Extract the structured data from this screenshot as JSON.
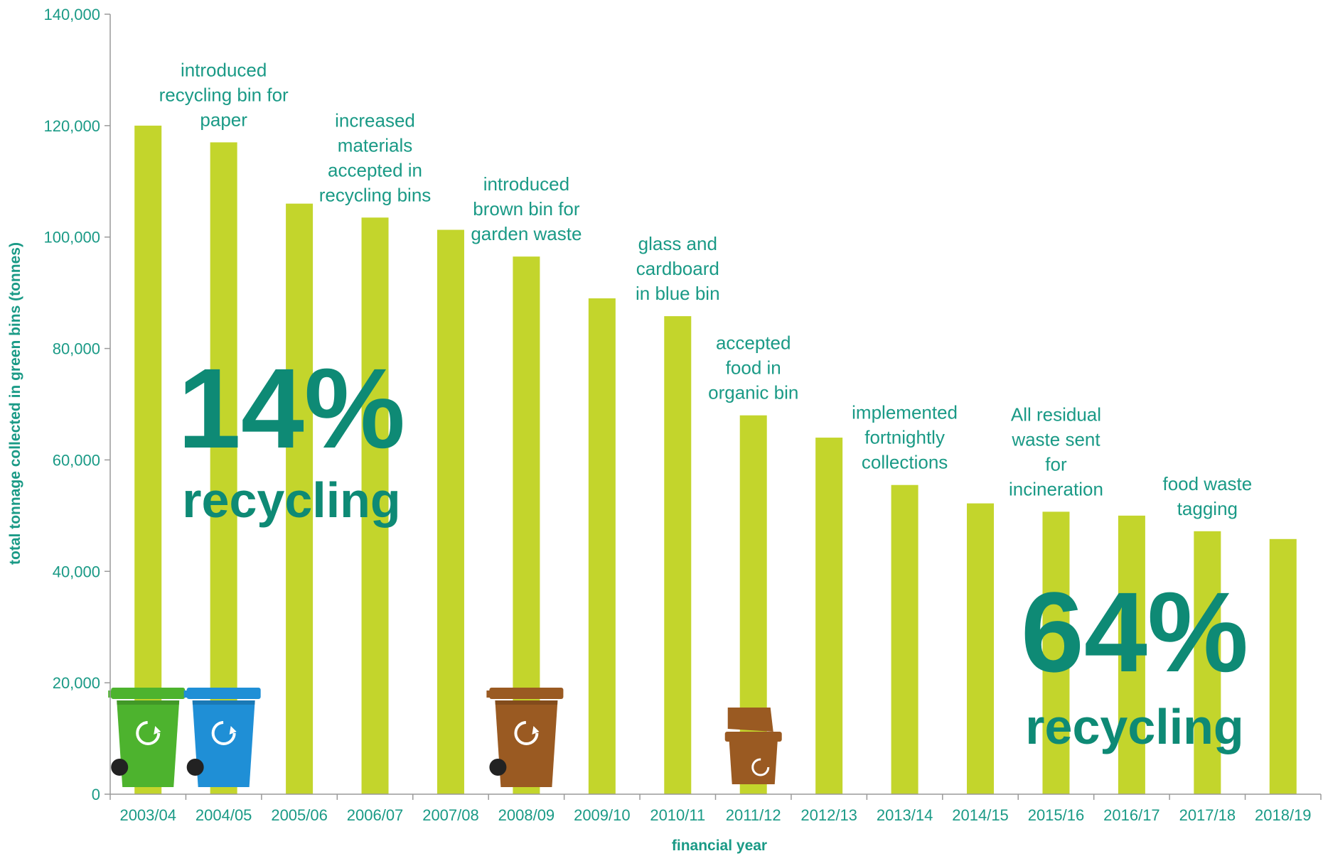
{
  "chart_data": {
    "type": "bar",
    "categories": [
      "2003/04",
      "2004/05",
      "2005/06",
      "2006/07",
      "2007/08",
      "2008/09",
      "2009/10",
      "2010/11",
      "2011/12",
      "2012/13",
      "2013/14",
      "2014/15",
      "2015/16",
      "2016/17",
      "2017/18",
      "2018/19"
    ],
    "values": [
      120000,
      117000,
      106000,
      103500,
      101300,
      96500,
      89000,
      85800,
      68000,
      64000,
      55500,
      52200,
      50700,
      50000,
      47200,
      45800
    ],
    "ylim": [
      0,
      140000
    ],
    "yticks": [
      0,
      20000,
      40000,
      60000,
      80000,
      100000,
      120000,
      140000
    ],
    "ytick_labels": [
      "0",
      "20,000",
      "40,000",
      "60,000",
      "80,000",
      "100,000",
      "120,000",
      "140,000"
    ],
    "xlabel": "financial year",
    "ylabel": "total tonnage collected in green bins (tonnes)",
    "grid": false,
    "colors": {
      "bar": "#c3d52c",
      "text": "#1a9a86",
      "axis": "#9a9a9a"
    },
    "annotations": [
      {
        "category": "2004/05",
        "lines": [
          "introduced",
          "recycling bin for",
          "paper"
        ]
      },
      {
        "category": "2006/07",
        "lines": [
          "increased",
          "materials",
          "accepted in",
          "recycling bins"
        ]
      },
      {
        "category": "2008/09",
        "lines": [
          "introduced",
          "brown bin for",
          "garden waste"
        ]
      },
      {
        "category": "2010/11",
        "lines": [
          "glass and",
          "cardboard",
          "in blue bin"
        ]
      },
      {
        "category": "2011/12",
        "lines": [
          "accepted",
          "food in",
          "organic bin"
        ]
      },
      {
        "category": "2013/14",
        "lines": [
          "implemented",
          "fortnightly",
          "collections"
        ]
      },
      {
        "category": "2015/16",
        "lines": [
          "All residual",
          "waste sent",
          "for",
          "incineration"
        ]
      },
      {
        "category": "2017/18",
        "lines": [
          "food waste",
          "tagging"
        ]
      }
    ],
    "callouts": [
      {
        "percent": "14%",
        "word": "recycling"
      },
      {
        "percent": "64%",
        "word": "recycling"
      }
    ],
    "icons": [
      {
        "name": "green-bin-icon",
        "category": "2003/04",
        "color": "#4db32e"
      },
      {
        "name": "blue-bin-icon",
        "category": "2004/05",
        "color": "#1f8fd6"
      },
      {
        "name": "brown-bin-icon",
        "category": "2008/09",
        "color": "#9a5a22"
      },
      {
        "name": "food-caddy-icon",
        "category": "2011/12",
        "color": "#9a5a22"
      }
    ]
  }
}
